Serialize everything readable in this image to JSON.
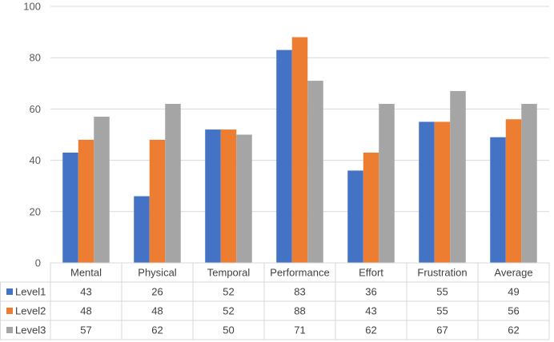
{
  "chart_data": {
    "type": "bar",
    "categories": [
      "Mental",
      "Physical",
      "Temporal",
      "Performance",
      "Effort",
      "Frustration",
      "Average"
    ],
    "series": [
      {
        "name": "Level1",
        "color": "#4472C4",
        "values": [
          43,
          26,
          52,
          83,
          36,
          55,
          49
        ]
      },
      {
        "name": "Level2",
        "color": "#ED7D31",
        "values": [
          48,
          48,
          52,
          88,
          43,
          55,
          56
        ]
      },
      {
        "name": "Level3",
        "color": "#A5A5A5",
        "values": [
          57,
          62,
          50,
          71,
          62,
          67,
          62
        ]
      }
    ],
    "yticks": [
      0,
      20,
      40,
      60,
      80,
      100
    ],
    "ylim": [
      0,
      100
    ],
    "grid": true,
    "legend": "data-table",
    "data_table": true
  }
}
